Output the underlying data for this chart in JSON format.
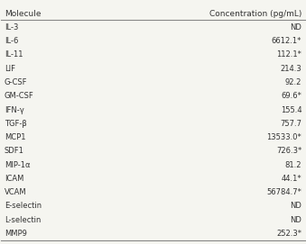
{
  "molecules": [
    "IL-3",
    "IL-6",
    "IL-11",
    "LIF",
    "G-CSF",
    "GM-CSF",
    "IFN-γ",
    "TGF-β",
    "MCP1",
    "SDF1",
    "MIP-1α",
    "ICAM",
    "VCAM",
    "E-selectin",
    "L-selectin",
    "MMP9"
  ],
  "concentrations": [
    "ND",
    "6612.1*",
    "112.1*",
    "214.3",
    "92.2",
    "69.6*",
    "155.4",
    "757.7",
    "13533.0*",
    "726.3*",
    "81.2",
    "44.1*",
    "56784.7*",
    "ND",
    "ND",
    "252.3*"
  ],
  "col1_header": "Molecule",
  "col2_header": "Concentration (pg/mL)",
  "background_color": "#f5f5f0",
  "text_color": "#333333",
  "header_color": "#333333",
  "line_color": "#888888"
}
